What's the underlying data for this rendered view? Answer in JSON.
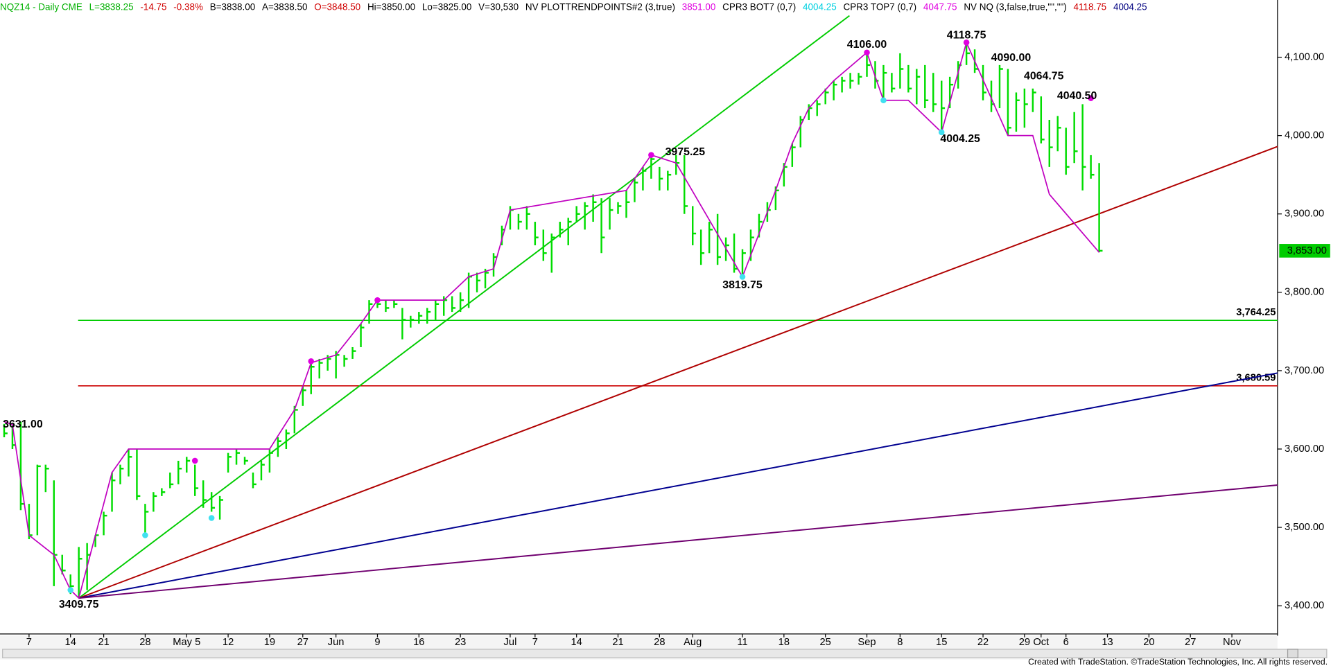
{
  "chart_data": {
    "type": "ohlc",
    "header": [
      {
        "text": "NQZ14 - Daily  CME",
        "color": "#00b000"
      },
      {
        "text": "L=3838.25",
        "color": "#00b000"
      },
      {
        "text": "-14.75",
        "color": "#d00000"
      },
      {
        "text": "-0.38%",
        "color": "#d00000"
      },
      {
        "text": "B=3838.00",
        "color": "#000000"
      },
      {
        "text": "A=3838.50",
        "color": "#000000"
      },
      {
        "text": "O=3848.50",
        "color": "#d00000"
      },
      {
        "text": "Hi=3850.00",
        "color": "#000000"
      },
      {
        "text": "Lo=3825.00",
        "color": "#000000"
      },
      {
        "text": "V=30,530",
        "color": "#000000"
      },
      {
        "text": "NV  PLOTTRENDPOINTS#2 (3,true)",
        "color": "#000000"
      },
      {
        "text": "3851.00",
        "color": "#e000e0"
      },
      {
        "text": "CPR3 BOT7 (0,7)",
        "color": "#000000"
      },
      {
        "text": "4004.25",
        "color": "#00d0e0"
      },
      {
        "text": "CPR3 TOP7 (0,7)",
        "color": "#000000"
      },
      {
        "text": "4047.75",
        "color": "#e000e0"
      },
      {
        "text": "NV NQ (3,false,true,\"\",\"\")",
        "color": "#000000"
      },
      {
        "text": "4118.75",
        "color": "#d00000"
      },
      {
        "text": "4004.25",
        "color": "#000080"
      }
    ],
    "footer": "Created with TradeStation. ©TradeStation Technologies, Inc. All rights reserved.",
    "xlim": [
      -0.5,
      153.5
    ],
    "ylim": [
      3364,
      4173
    ],
    "xticks": [
      {
        "value": 3,
        "label": "7"
      },
      {
        "value": 8,
        "label": "14"
      },
      {
        "value": 12,
        "label": "21"
      },
      {
        "value": 17,
        "label": "28"
      },
      {
        "value": 22,
        "label": "May 5"
      },
      {
        "value": 27,
        "label": "12"
      },
      {
        "value": 32,
        "label": "19"
      },
      {
        "value": 36,
        "label": "27"
      },
      {
        "value": 40,
        "label": "Jun"
      },
      {
        "value": 45,
        "label": "9"
      },
      {
        "value": 50,
        "label": "16"
      },
      {
        "value": 55,
        "label": "23"
      },
      {
        "value": 61,
        "label": "Jul"
      },
      {
        "value": 64,
        "label": "7"
      },
      {
        "value": 69,
        "label": "14"
      },
      {
        "value": 74,
        "label": "21"
      },
      {
        "value": 79,
        "label": "28"
      },
      {
        "value": 83,
        "label": "Aug"
      },
      {
        "value": 89,
        "label": "11"
      },
      {
        "value": 94,
        "label": "18"
      },
      {
        "value": 99,
        "label": "25"
      },
      {
        "value": 104,
        "label": "Sep"
      },
      {
        "value": 108,
        "label": "8"
      },
      {
        "value": 113,
        "label": "15"
      },
      {
        "value": 118,
        "label": "22"
      },
      {
        "value": 123,
        "label": "29"
      },
      {
        "value": 125,
        "label": "Oct"
      },
      {
        "value": 128,
        "label": "6"
      },
      {
        "value": 133,
        "label": "13"
      },
      {
        "value": 138,
        "label": "20"
      },
      {
        "value": 143,
        "label": "27"
      },
      {
        "value": 148,
        "label": "Nov"
      }
    ],
    "yticks": [
      {
        "value": 3400,
        "label": "3,400.00"
      },
      {
        "value": 3500,
        "label": "3,500.00"
      },
      {
        "value": 3600,
        "label": "3,600.00"
      },
      {
        "value": 3700,
        "label": "3,700.00"
      },
      {
        "value": 3800,
        "label": "3,800.00"
      },
      {
        "value": 3900,
        "label": "3,900.00"
      },
      {
        "value": 4000,
        "label": "4,000.00"
      },
      {
        "value": 4100,
        "label": "4,100.00"
      }
    ],
    "bar_color": "#00dd00",
    "bars": {
      "x": [
        0,
        1,
        2,
        3,
        4,
        5,
        6,
        7,
        8,
        9,
        10,
        11,
        12,
        13,
        14,
        15,
        16,
        17,
        18,
        19,
        20,
        21,
        22,
        23,
        24,
        25,
        26,
        27,
        28,
        29,
        30,
        31,
        32,
        33,
        34,
        35,
        36,
        37,
        38,
        39,
        40,
        41,
        42,
        43,
        44,
        45,
        46,
        47,
        48,
        49,
        50,
        51,
        52,
        53,
        54,
        55,
        56,
        57,
        58,
        59,
        60,
        61,
        62,
        63,
        64,
        65,
        66,
        67,
        68,
        69,
        70,
        71,
        72,
        73,
        74,
        75,
        76,
        77,
        78,
        79,
        80,
        81,
        82,
        83,
        84,
        85,
        86,
        87,
        88,
        89,
        90,
        91,
        92,
        93,
        94,
        95,
        96,
        97,
        98,
        99,
        100,
        101,
        102,
        103,
        104,
        105,
        106,
        107,
        108,
        109,
        110,
        111,
        112,
        113,
        114,
        115,
        116,
        117,
        118,
        119,
        120,
        121,
        122,
        123,
        124,
        125,
        126,
        127,
        128,
        129,
        130,
        131,
        132
      ],
      "high": [
        3632,
        3631,
        3635,
        3530,
        3580,
        3580,
        3560,
        3465,
        3440,
        3475,
        3480,
        3490,
        3520,
        3570,
        3580,
        3600,
        3600,
        3530,
        3545,
        3550,
        3570,
        3585,
        3590,
        3580,
        3560,
        3545,
        3540,
        3595,
        3600,
        3590,
        3570,
        3585,
        3600,
        3615,
        3625,
        3655,
        3680,
        3710,
        3715,
        3720,
        3725,
        3720,
        3730,
        3760,
        3790,
        3790,
        3790,
        3790,
        3780,
        3770,
        3775,
        3780,
        3790,
        3795,
        3795,
        3800,
        3825,
        3825,
        3830,
        3850,
        3885,
        3910,
        3900,
        3910,
        3890,
        3880,
        3875,
        3890,
        3895,
        3910,
        3915,
        3925,
        3920,
        3920,
        3915,
        3930,
        3945,
        3960,
        3975,
        3960,
        3955,
        3975,
        3975,
        3910,
        3880,
        3890,
        3900,
        3870,
        3875,
        3855,
        3880,
        3900,
        3915,
        3935,
        3965,
        3990,
        4025,
        4040,
        4045,
        4060,
        4070,
        4075,
        4080,
        4080,
        4106,
        4095,
        4090,
        4080,
        4105,
        4090,
        4085,
        4090,
        4080,
        4070,
        4075,
        4095,
        4118.75,
        4110,
        4090,
        4070,
        4090,
        4085,
        4055,
        4060,
        4060,
        4050,
        4020,
        4025,
        4010,
        4030,
        4040,
        3975,
        3965
      ],
      "low": [
        3615,
        3600,
        3522,
        3485,
        3490,
        3545,
        3425,
        3440,
        3415,
        3409.75,
        3420,
        3475,
        3490,
        3520,
        3555,
        3565,
        3535,
        3490,
        3520,
        3540,
        3550,
        3555,
        3570,
        3540,
        3525,
        3520,
        3510,
        3570,
        3580,
        3580,
        3550,
        3560,
        3570,
        3590,
        3600,
        3620,
        3655,
        3670,
        3690,
        3700,
        3690,
        3705,
        3715,
        3730,
        3760,
        3780,
        3775,
        3780,
        3740,
        3755,
        3760,
        3760,
        3765,
        3770,
        3775,
        3775,
        3780,
        3800,
        3805,
        3820,
        3860,
        3880,
        3880,
        3880,
        3860,
        3840,
        3825,
        3870,
        3860,
        3890,
        3880,
        3890,
        3850,
        3880,
        3900,
        3895,
        3915,
        3930,
        3945,
        3930,
        3930,
        3950,
        3900,
        3860,
        3835,
        3850,
        3835,
        3840,
        3825,
        3819.75,
        3840,
        3870,
        3890,
        3905,
        3935,
        3960,
        3985,
        4020,
        4025,
        4040,
        4045,
        4055,
        4060,
        4065,
        4075,
        4060,
        4045,
        4055,
        4060,
        4055,
        4040,
        4035,
        4030,
        4004.25,
        4035,
        4060,
        4090,
        4080,
        4045,
        4030,
        4035,
        4000,
        4005,
        4010,
        4030,
        3990,
        3960,
        3980,
        3950,
        3965,
        3930,
        3945,
        3851
      ],
      "close": [
        3620,
        3605,
        3530,
        3490,
        3578,
        3575,
        3465,
        3445,
        3425,
        3460,
        3465,
        3490,
        3515,
        3560,
        3575,
        3590,
        3540,
        3520,
        3540,
        3545,
        3555,
        3575,
        3585,
        3550,
        3535,
        3525,
        3535,
        3590,
        3595,
        3585,
        3555,
        3580,
        3595,
        3610,
        3620,
        3650,
        3675,
        3705,
        3710,
        3715,
        3720,
        3715,
        3725,
        3755,
        3785,
        3785,
        3780,
        3785,
        3765,
        3765,
        3770,
        3775,
        3785,
        3790,
        3780,
        3790,
        3820,
        3815,
        3825,
        3845,
        3880,
        3905,
        3890,
        3900,
        3870,
        3850,
        3870,
        3880,
        3890,
        3900,
        3910,
        3915,
        3870,
        3905,
        3910,
        3915,
        3940,
        3955,
        3970,
        3945,
        3950,
        3965,
        3910,
        3875,
        3850,
        3880,
        3845,
        3860,
        3830,
        3850,
        3870,
        3890,
        3905,
        3930,
        3960,
        3985,
        4020,
        4035,
        4040,
        4055,
        4065,
        4070,
        4070,
        4075,
        4090,
        4070,
        4080,
        4060,
        4085,
        4060,
        4075,
        4045,
        4040,
        4035,
        4065,
        4090,
        4105,
        4085,
        4055,
        4040,
        4085,
        4010,
        4045,
        4040,
        4055,
        3995,
        3985,
        4010,
        3960,
        3980,
        3960,
        3950,
        3853
      ]
    },
    "swing_line": {
      "color": "#c000c0",
      "x": [
        0,
        1,
        3,
        6,
        8,
        9,
        11,
        13,
        15,
        32,
        35,
        37,
        40,
        43,
        45,
        53,
        56,
        59,
        61,
        75,
        78,
        81,
        89,
        93,
        95,
        97,
        100,
        104,
        106,
        109,
        113,
        116,
        121,
        124,
        126,
        132
      ],
      "y": [
        3635,
        3631,
        3490,
        3465,
        3420,
        3409.75,
        3490,
        3570,
        3600,
        3600,
        3650,
        3710,
        3720,
        3760,
        3790,
        3790,
        3820,
        3830,
        3905,
        3930,
        3975.25,
        3965,
        3819.75,
        3930,
        3990,
        4035,
        4070,
        4106,
        4045,
        4045,
        4004.25,
        4118.75,
        4000,
        4000,
        3925,
        3851
      ]
    },
    "trendlines": [
      {
        "color": "#00cc00",
        "x": [
          9,
          101.9
        ],
        "y": [
          3409.75,
          4153
        ]
      },
      {
        "color": "#b00000",
        "x": [
          9,
          153.5
        ],
        "y": [
          3409.75,
          3986
        ]
      },
      {
        "color": "#000090",
        "x": [
          9,
          153.5
        ],
        "y": [
          3409.75,
          3697
        ]
      },
      {
        "color": "#700070",
        "x": [
          9,
          153.5
        ],
        "y": [
          3409.75,
          3554
        ]
      }
    ],
    "levels": [
      {
        "value": 3764.25,
        "label": "3,764.25",
        "color": "#00cc00"
      },
      {
        "value": 3680.59,
        "label": "3,680.59",
        "color": "#cc0000"
      }
    ],
    "last_price": {
      "value": 3853,
      "label": "3,853.00",
      "color": "#00cc00"
    },
    "pivots": [
      {
        "x": 37,
        "y": 3712,
        "color": "#e000e0"
      },
      {
        "x": 45,
        "y": 3790,
        "color": "#e000e0"
      },
      {
        "x": 23,
        "y": 3585,
        "color": "#e000e0"
      },
      {
        "x": 78,
        "y": 3975.25,
        "color": "#e000e0"
      },
      {
        "x": 104,
        "y": 4106,
        "color": "#e000e0"
      },
      {
        "x": 116,
        "y": 4118.75,
        "color": "#e000e0"
      },
      {
        "x": 131,
        "y": 4047.75,
        "color": "#e000e0"
      },
      {
        "x": 8,
        "y": 3420,
        "color": "#40e0f0"
      },
      {
        "x": 17,
        "y": 3490,
        "color": "#40e0f0"
      },
      {
        "x": 25,
        "y": 3512,
        "color": "#40e0f0"
      },
      {
        "x": 89,
        "y": 3819.75,
        "color": "#40e0f0"
      },
      {
        "x": 106,
        "y": 4045,
        "color": "#40e0f0"
      },
      {
        "x": 113,
        "y": 4004.25,
        "color": "#40e0f0"
      }
    ],
    "annotations": [
      {
        "x": 0,
        "value": 3631,
        "label": "3631.00"
      },
      {
        "x": 9,
        "value": 3409.75,
        "label": "3409.75"
      },
      {
        "x": 78,
        "value": 3975.25,
        "label": "3975.25"
      },
      {
        "x": 89,
        "value": 3819.75,
        "label": "3819.75"
      },
      {
        "x": 104,
        "value": 4106,
        "label": "4106.00"
      },
      {
        "x": 116,
        "value": 4118.75,
        "label": "4118.75"
      },
      {
        "x": 118,
        "value": 4090,
        "label": "4090.00"
      },
      {
        "x": 124,
        "value": 4064.75,
        "label": "4064.75"
      },
      {
        "x": 128,
        "value": 4040.5,
        "label": "4040.50"
      },
      {
        "x": 113,
        "value": 4004.25,
        "label": "4004.25"
      }
    ]
  }
}
